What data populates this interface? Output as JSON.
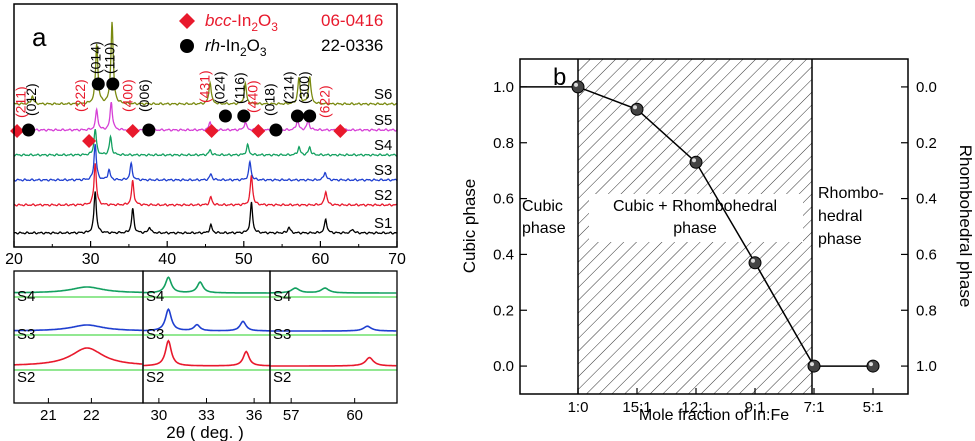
{
  "chart_data": [
    {
      "panel": "a",
      "type": "line",
      "xlabel": "2θ ( deg. )",
      "xlim": [
        20,
        70
      ],
      "xticks": [
        20,
        30,
        40,
        50,
        60,
        70
      ],
      "legend": [
        {
          "marker": "red-diamond",
          "label_pre": "bcc",
          "label_post": "-In2O3",
          "ref": "06-0416",
          "color": "#e8192c"
        },
        {
          "marker": "black-circle",
          "label_pre": "rh",
          "label_post": "-In2O3",
          "ref": "22-0336",
          "color": "#000000"
        }
      ],
      "series": [
        {
          "name": "S1",
          "color": "#000000",
          "peaks": [
            [
              30.6,
              42
            ],
            [
              35.5,
              24
            ],
            [
              37.7,
              6
            ],
            [
              45.7,
              8
            ],
            [
              51.0,
              30
            ],
            [
              55.9,
              6
            ],
            [
              60.7,
              14
            ],
            [
              64.2,
              4
            ]
          ]
        },
        {
          "name": "S2",
          "color": "#e8192c",
          "peaks": [
            [
              30.6,
              42
            ],
            [
              35.5,
              24
            ],
            [
              45.7,
              8
            ],
            [
              51.0,
              30
            ],
            [
              60.7,
              14
            ]
          ]
        },
        {
          "name": "S3",
          "color": "#1f3fd0",
          "peaks": [
            [
              30.6,
              36
            ],
            [
              32.4,
              10
            ],
            [
              35.3,
              16
            ],
            [
              45.7,
              6
            ],
            [
              50.8,
              18
            ],
            [
              60.6,
              8
            ]
          ]
        },
        {
          "name": "S4",
          "color": "#13a060",
          "peaks": [
            [
              30.6,
              26
            ],
            [
              32.6,
              18
            ],
            [
              45.6,
              5
            ],
            [
              50.5,
              10
            ],
            [
              57.2,
              8
            ],
            [
              58.6,
              8
            ]
          ]
        },
        {
          "name": "S5",
          "color": "#d640d6",
          "peaks": [
            [
              30.8,
              20
            ],
            [
              32.7,
              28
            ],
            [
              45.6,
              8
            ],
            [
              50.2,
              8
            ],
            [
              57.0,
              10
            ],
            [
              58.4,
              10
            ]
          ]
        },
        {
          "name": "S6",
          "color": "#7a8a10",
          "peaks": [
            [
              22.4,
              8
            ],
            [
              30.8,
              60
            ],
            [
              32.8,
              82
            ],
            [
              45.6,
              22
            ],
            [
              50.2,
              20
            ],
            [
              57.2,
              26
            ],
            [
              58.6,
              28
            ]
          ]
        }
      ],
      "annotations": [
        {
          "label": "(211)",
          "x": 21.5,
          "color": "#e8192c"
        },
        {
          "label": "(012)",
          "x": 22.9,
          "color": "#000000"
        },
        {
          "label": "(222)",
          "x": 29.3,
          "color": "#e8192c"
        },
        {
          "label": "(014)",
          "x": 31.3,
          "color": "#000000"
        },
        {
          "label": "(110)",
          "x": 33.1,
          "color": "#000000"
        },
        {
          "label": "(400)",
          "x": 35.5,
          "color": "#e8192c"
        },
        {
          "label": "(006)",
          "x": 37.6,
          "color": "#000000"
        },
        {
          "label": "(431)",
          "x": 45.5,
          "color": "#e8192c"
        },
        {
          "label": "(024)",
          "x": 47.5,
          "color": "#000000"
        },
        {
          "label": "(116)",
          "x": 50.1,
          "color": "#000000"
        },
        {
          "label": "(440)",
          "x": 51.8,
          "color": "#e8192c"
        },
        {
          "label": "(018)",
          "x": 54.0,
          "color": "#000000"
        },
        {
          "label": "(214)",
          "x": 56.5,
          "color": "#000000"
        },
        {
          "label": "(300)",
          "x": 58.5,
          "color": "#000000"
        },
        {
          "label": "(622)",
          "x": 61.2,
          "color": "#e8192c"
        }
      ],
      "bcc_markers_x": [
        20.4,
        29.8,
        35.5,
        45.8,
        51.9,
        62.6
      ],
      "rh_markers_x": [
        21.9,
        31.0,
        32.9,
        37.6,
        47.6,
        50.0,
        54.2,
        57.0,
        58.6
      ],
      "insets": [
        {
          "xlim": [
            20.2,
            23.2
          ],
          "xticks": [
            21,
            22
          ],
          "labels": [
            "S4",
            "S3",
            "S2"
          ]
        },
        {
          "xlim": [
            29,
            37
          ],
          "xticks": [
            30,
            33,
            36
          ],
          "labels": [
            "S4",
            "S3",
            "S2"
          ]
        },
        {
          "xlim": [
            56,
            62
          ],
          "xticks": [
            57,
            60
          ],
          "labels": [
            "S4",
            "S3",
            "S2"
          ]
        }
      ]
    },
    {
      "panel": "b",
      "type": "line",
      "xlabel": "Mole fraction of In:Fe",
      "ylabel": "Cubic phase",
      "y2label": "Rhombohedral phase",
      "categories": [
        "1:0",
        "15:1",
        "12:1",
        "9:1",
        "7:1",
        "5:1"
      ],
      "cubic_phase_values": [
        1.0,
        0.92,
        0.73,
        0.37,
        0.0,
        0.0
      ],
      "ylim": [
        -0.1,
        1.1
      ],
      "yticks": [
        "0.0",
        "0.2",
        "0.4",
        "0.6",
        "0.8",
        "1.0"
      ],
      "y2ticks": [
        "1.0",
        "0.8",
        "0.6",
        "0.4",
        "0.2",
        "0.0"
      ],
      "region_labels": [
        {
          "lines": [
            "Cubic",
            "phase"
          ]
        },
        {
          "lines": [
            "Cubic + Rhombohedral",
            "phase"
          ]
        },
        {
          "lines": [
            "Rhombo-",
            "hedral",
            "phase"
          ]
        }
      ]
    }
  ],
  "panel_labels": {
    "a": "a",
    "b": "b"
  }
}
